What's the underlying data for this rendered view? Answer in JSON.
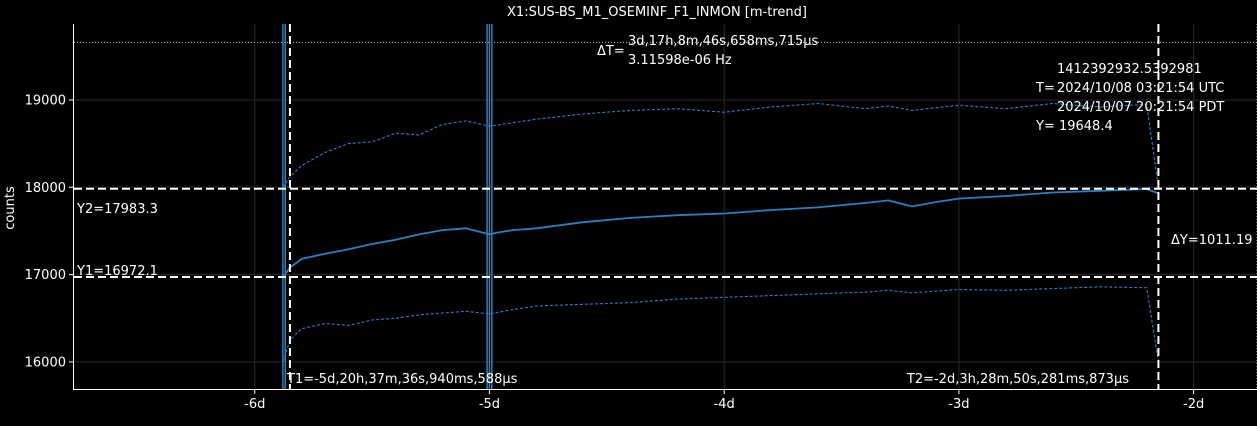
{
  "chart_data": {
    "type": "line",
    "title": "X1:SUS-BS_M1_OSEMINF_F1_INMON [m-trend]",
    "ylabel": "counts",
    "xlim_days": [
      -6.77,
      -1.73
    ],
    "ylim": [
      15690,
      19870
    ],
    "xticks": [
      {
        "value": -6,
        "label": "-6d"
      },
      {
        "value": -5,
        "label": "-5d"
      },
      {
        "value": -4,
        "label": "-4d"
      },
      {
        "value": -3,
        "label": "-3d"
      },
      {
        "value": -2,
        "label": "-2d"
      }
    ],
    "yticks": [
      {
        "value": 16000,
        "label": "16000"
      },
      {
        "value": 17000,
        "label": "17000"
      },
      {
        "value": 18000,
        "label": "18000"
      },
      {
        "value": 19000,
        "label": "19000"
      }
    ],
    "grid": true,
    "series": [
      {
        "role": "mean",
        "style": "solid",
        "x": [
          -5.88,
          -5.85,
          -5.8,
          -5.7,
          -5.6,
          -5.5,
          -5.4,
          -5.3,
          -5.2,
          -5.1,
          -5.0,
          -4.97,
          -4.9,
          -4.8,
          -4.6,
          -4.4,
          -4.2,
          -4.0,
          -3.8,
          -3.6,
          -3.4,
          -3.3,
          -3.2,
          -3.1,
          -3.0,
          -2.8,
          -2.6,
          -2.4,
          -2.2,
          -2.15
        ],
        "y": [
          16972,
          17080,
          17180,
          17240,
          17290,
          17350,
          17400,
          17460,
          17510,
          17530,
          17460,
          17480,
          17510,
          17530,
          17600,
          17650,
          17680,
          17700,
          17740,
          17770,
          17820,
          17850,
          17780,
          17830,
          17870,
          17900,
          17940,
          17960,
          17980,
          17930
        ]
      },
      {
        "role": "max",
        "style": "dashed",
        "x": [
          -5.88,
          -5.85,
          -5.8,
          -5.7,
          -5.6,
          -5.5,
          -5.4,
          -5.3,
          -5.2,
          -5.1,
          -5.0,
          -4.9,
          -4.8,
          -4.6,
          -4.4,
          -4.2,
          -4.0,
          -3.8,
          -3.6,
          -3.4,
          -3.3,
          -3.2,
          -3.0,
          -2.8,
          -2.6,
          -2.4,
          -2.2,
          -2.15
        ],
        "y": [
          18000,
          18120,
          18250,
          18400,
          18500,
          18520,
          18620,
          18600,
          18720,
          18760,
          18700,
          18740,
          18780,
          18840,
          18880,
          18900,
          18860,
          18920,
          18960,
          18900,
          18930,
          18880,
          18940,
          18900,
          18960,
          18920,
          18950,
          18000
        ]
      },
      {
        "role": "min",
        "style": "dashed",
        "x": [
          -5.88,
          -5.85,
          -5.8,
          -5.7,
          -5.6,
          -5.5,
          -5.4,
          -5.3,
          -5.2,
          -5.1,
          -5.0,
          -4.9,
          -4.8,
          -4.6,
          -4.4,
          -4.2,
          -4.0,
          -3.8,
          -3.6,
          -3.4,
          -3.3,
          -3.2,
          -3.0,
          -2.8,
          -2.6,
          -2.4,
          -2.2,
          -2.15
        ],
        "y": [
          16000,
          16250,
          16380,
          16440,
          16420,
          16480,
          16500,
          16540,
          16560,
          16580,
          16550,
          16600,
          16640,
          16660,
          16680,
          16720,
          16740,
          16760,
          16780,
          16800,
          16820,
          16790,
          16830,
          16820,
          16840,
          16860,
          16850,
          16000
        ]
      }
    ],
    "spikes": [
      {
        "x": -5.88,
        "y0": 15690,
        "y1": 19870
      },
      {
        "x": -5.87,
        "y0": 15690,
        "y1": 19870
      },
      {
        "x": -5.01,
        "y0": 15690,
        "y1": 19870
      },
      {
        "x": -5.0,
        "y0": 15690,
        "y1": 19870
      },
      {
        "x": -4.99,
        "y0": 15690,
        "y1": 19870
      }
    ],
    "series_color": "#2b7fc1",
    "reference_line_y": 19660,
    "reference_line_x": -1.73,
    "cursors": {
      "t1": {
        "x": -5.85,
        "label": "T1=-5d,20h,37m,36s,940ms,588µs"
      },
      "t2": {
        "x": -2.15,
        "label": "T2=-2d,3h,28m,50s,281ms,873µs"
      },
      "y1": {
        "y": 16972.1,
        "label": "Y1=16972.1"
      },
      "y2": {
        "y": 17983.3,
        "label": "Y2=17983.3"
      },
      "delta_t_prefix": "ΔT=",
      "delta_t": "3d,17h,8m,46s,658ms,715µs",
      "delta_freq": "3.11598e-06 Hz",
      "delta_y": "ΔY=1011.19"
    },
    "readout": {
      "gps": "1412392932.5392981",
      "t_prefix": "T=",
      "utc": "2024/10/08 03:21:54 UTC",
      "pdt": "2024/10/07 20:21:54 PDT",
      "y_value": "Y= 19648.4"
    }
  }
}
